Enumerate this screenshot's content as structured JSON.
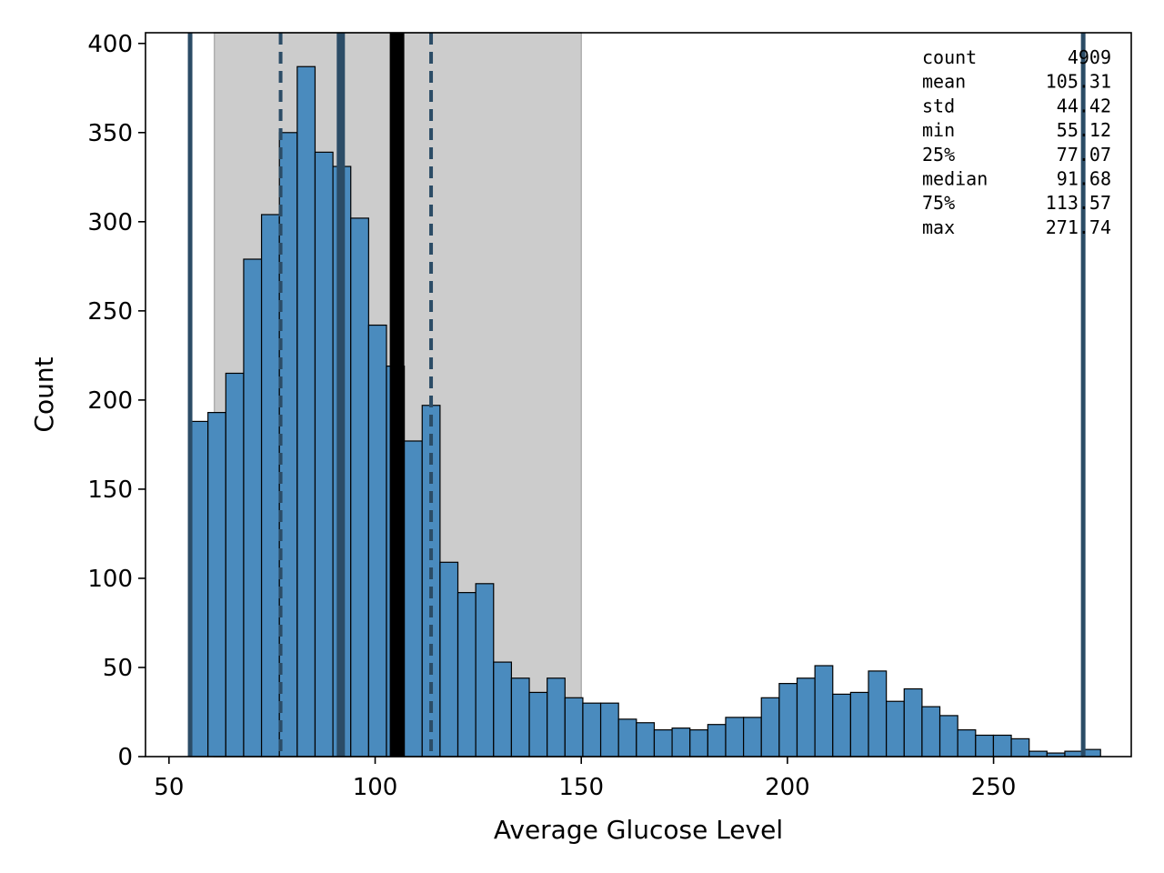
{
  "chart_data": {
    "type": "bar",
    "title": "",
    "xlabel": "Average Glucose Level",
    "ylabel": "Count",
    "xlim": [
      44.3,
      283.4
    ],
    "ylim": [
      0,
      406
    ],
    "xticks": [
      50,
      100,
      150,
      200,
      250
    ],
    "yticks": [
      0,
      50,
      100,
      150,
      200,
      250,
      300,
      350,
      400
    ],
    "grid": false,
    "bin_start": 55.12,
    "bin_width": 4.33,
    "values": [
      188,
      193,
      215,
      279,
      304,
      350,
      387,
      339,
      331,
      302,
      242,
      219,
      177,
      197,
      109,
      92,
      97,
      53,
      44,
      36,
      44,
      33,
      30,
      30,
      21,
      19,
      15,
      16,
      15,
      18,
      22,
      22,
      33,
      41,
      44,
      51,
      35,
      36,
      48,
      31,
      38,
      28,
      23,
      15,
      12,
      12,
      10,
      3,
      2,
      3,
      4
    ],
    "shaded_range": [
      61,
      150
    ],
    "vlines": [
      {
        "x": 55.12,
        "style": "solid",
        "role": "min"
      },
      {
        "x": 77.07,
        "style": "dashed",
        "role": "25%"
      },
      {
        "x": 91.68,
        "style": "thick",
        "role": "median"
      },
      {
        "x": 105.31,
        "style": "mean",
        "role": "mean"
      },
      {
        "x": 113.57,
        "style": "dashed",
        "role": "75%"
      },
      {
        "x": 271.74,
        "style": "solid",
        "role": "max"
      }
    ],
    "stats": [
      {
        "label": "count",
        "value": "4909"
      },
      {
        "label": "mean",
        "value": "105.31"
      },
      {
        "label": "std",
        "value": "44.42"
      },
      {
        "label": "min",
        "value": "55.12"
      },
      {
        "label": "25%",
        "value": "77.07"
      },
      {
        "label": "median",
        "value": "91.68"
      },
      {
        "label": "75%",
        "value": "113.57"
      },
      {
        "label": "max",
        "value": "271.74"
      }
    ]
  },
  "colors": {
    "bar_fill": "#4a8bbe",
    "bar_edge": "#000000",
    "shade": "#cccccc",
    "line": "#2b4c66",
    "mean_line": "#000000"
  }
}
